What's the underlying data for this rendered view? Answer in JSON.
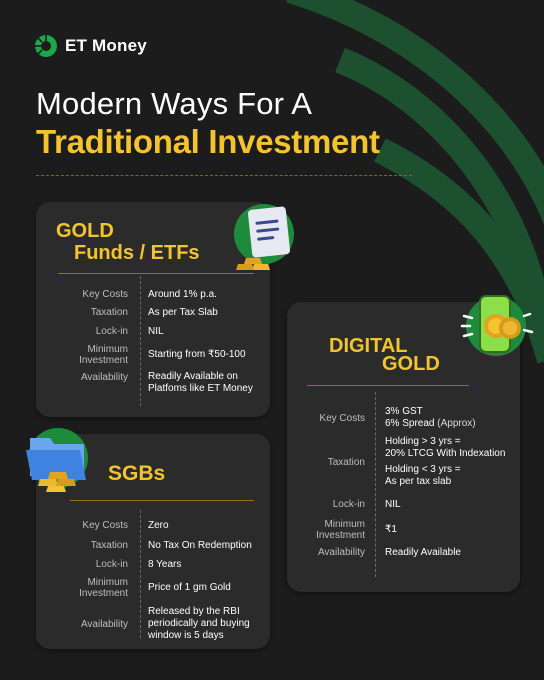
{
  "brand": {
    "logo_text": "ET Money",
    "accent": "#f4c430",
    "green": "#1e8a3c"
  },
  "headline": {
    "line1": "Modern Ways For A",
    "line2": "Traditional Investment"
  },
  "gold_funds": {
    "title_line1": "GOLD",
    "title_line2": "Funds / ETFs",
    "icon": "document-gold-bars-icon",
    "rows": [
      {
        "label": "Key Costs",
        "value": "Around 1% p.a."
      },
      {
        "label": "Taxation",
        "value": "As per Tax Slab"
      },
      {
        "label": "Lock-in",
        "value": "NIL"
      },
      {
        "label": "Minimum Investment",
        "value": "Starting from ₹50-100"
      },
      {
        "label": "Availability",
        "value": "Readily Available on Platfoms like ET Money"
      }
    ]
  },
  "digital_gold": {
    "title_line1": "DIGITAL",
    "title_line2": "GOLD",
    "icon": "phone-gold-coins-icon",
    "rows": [
      {
        "label": "Key Costs",
        "value_line1": "3% GST",
        "value_line2": "6% Spread",
        "value_line2_suffix": " (Approx)"
      },
      {
        "label": "Taxation",
        "value_line1": "Holding > 3 yrs =",
        "value_line2": "20% LTCG With Indexation",
        "value_line3": "Holding < 3 yrs =",
        "value_line4": "As per tax slab"
      },
      {
        "label": "Lock-in",
        "value": "NIL"
      },
      {
        "label": "Minimum Investment",
        "value": "₹1"
      },
      {
        "label": "Availability",
        "value": "Readily Available"
      }
    ]
  },
  "sgbs": {
    "title": "SGBs",
    "icon": "folder-gold-bars-icon",
    "rows": [
      {
        "label": "Key Costs",
        "value": "Zero"
      },
      {
        "label": "Taxation",
        "value": "No Tax On Redemption"
      },
      {
        "label": "Lock-in",
        "value": "8 Years"
      },
      {
        "label": "Minimum Investment",
        "value": "Price of 1 gm Gold"
      },
      {
        "label": "Availability",
        "value": "Released by the RBI periodically and buying window is 5 days"
      }
    ]
  }
}
